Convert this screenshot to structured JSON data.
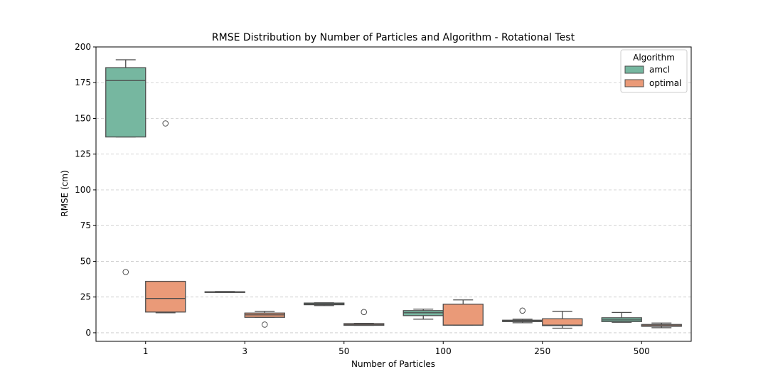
{
  "chart_data": {
    "type": "box",
    "title": "RMSE Distribution by Number of Particles and Algorithm - Rotational Test",
    "xlabel": "Number of Particles",
    "ylabel": "RMSE (cm)",
    "categories": [
      "1",
      "3",
      "50",
      "100",
      "250",
      "500"
    ],
    "ylim": [
      -6,
      200
    ],
    "yticks": [
      0,
      25,
      50,
      75,
      100,
      125,
      150,
      175,
      200
    ],
    "grid": "y-dashed",
    "legend": {
      "title": "Algorithm",
      "position": "top-right"
    },
    "series": [
      {
        "name": "amcl",
        "color": "#76b7a0",
        "boxes": [
          {
            "whislo": 137,
            "q1": 137,
            "med": 176.5,
            "q3": 185.5,
            "whishi": 191,
            "fliers": [
              42.5
            ]
          },
          {
            "whislo": 28.3,
            "q1": 28.3,
            "med": 28.5,
            "q3": 28.7,
            "whishi": 28.9,
            "fliers": []
          },
          {
            "whislo": 19,
            "q1": 19.6,
            "med": 20.2,
            "q3": 20.8,
            "whishi": 21,
            "fliers": []
          },
          {
            "whislo": 9.5,
            "q1": 12,
            "med": 14,
            "q3": 15.5,
            "whishi": 16.5,
            "fliers": []
          },
          {
            "whislo": 7,
            "q1": 7.8,
            "med": 8.3,
            "q3": 8.8,
            "whishi": 9.5,
            "fliers": [
              15.5
            ]
          },
          {
            "whislo": 7.3,
            "q1": 7.8,
            "med": 9,
            "q3": 10.5,
            "whishi": 14.2,
            "fliers": []
          }
        ]
      },
      {
        "name": "optimal",
        "color": "#ea9a78",
        "boxes": [
          {
            "whislo": 14,
            "q1": 14.5,
            "med": 24,
            "q3": 36,
            "whishi": 36,
            "fliers": [
              146.5
            ]
          },
          {
            "whislo": 10.8,
            "q1": 10.8,
            "med": 12.5,
            "q3": 13.8,
            "whishi": 15,
            "fliers": [
              5.7
            ]
          },
          {
            "whislo": 5.2,
            "q1": 5.2,
            "med": 5.8,
            "q3": 6.4,
            "whishi": 6.6,
            "fliers": [
              14.5
            ]
          },
          {
            "whislo": 5.3,
            "q1": 5.3,
            "med": 5.4,
            "q3": 20,
            "whishi": 23,
            "fliers": []
          },
          {
            "whislo": 3.2,
            "q1": 5,
            "med": 5.4,
            "q3": 9.8,
            "whishi": 15,
            "fliers": []
          },
          {
            "whislo": 3.5,
            "q1": 4.5,
            "med": 5,
            "q3": 5.8,
            "whishi": 6.8,
            "fliers": []
          }
        ]
      }
    ]
  }
}
